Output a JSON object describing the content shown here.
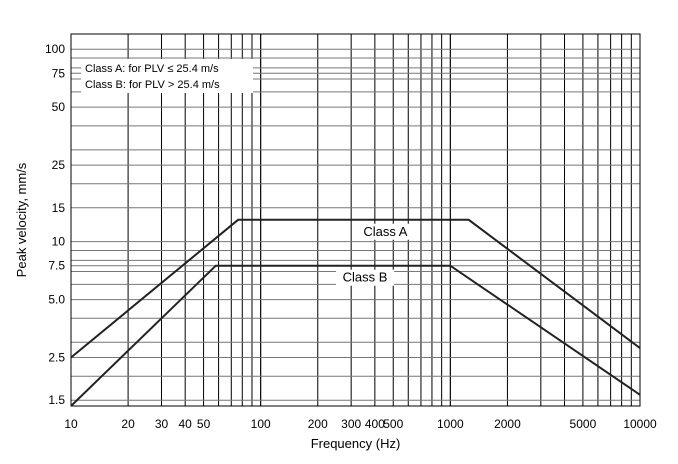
{
  "chart_data": {
    "type": "line",
    "xlabel": "Frequency (Hz)",
    "ylabel": "Peak  velocity, mm/s",
    "xscale": "log",
    "yscale": "log",
    "xlim": [
      10,
      10000
    ],
    "ylim": [
      1.4,
      120
    ],
    "grid": true,
    "x_ticks": [
      10,
      20,
      30,
      40,
      50,
      100,
      200,
      300,
      400,
      500,
      1000,
      2000,
      5000,
      10000
    ],
    "x_tick_labels": [
      "10",
      "20",
      "30",
      "40",
      "50",
      "100",
      "200",
      "300",
      "400",
      "500",
      "1000",
      "2000",
      "5000",
      "10000"
    ],
    "y_ticks": [
      1.5,
      2.5,
      5.0,
      7.5,
      10,
      15,
      25,
      50,
      75,
      100
    ],
    "y_tick_labels": [
      "1.5",
      "2.5",
      "5.0",
      "7.5",
      "10",
      "15",
      "25",
      "50",
      "75",
      "100"
    ],
    "legend": {
      "placement": "top-left",
      "lines": [
        "Class A:  for PLV ≤ 25.4 m/s",
        "Class B:  for PLV > 25.4 m/s"
      ]
    },
    "series": [
      {
        "name": "Class A",
        "points": [
          [
            10,
            2.5
          ],
          [
            76,
            13
          ],
          [
            1250,
            13
          ],
          [
            10000,
            2.8
          ]
        ]
      },
      {
        "name": "Class B",
        "points": [
          [
            10,
            1.4
          ],
          [
            58,
            7.5
          ],
          [
            1000,
            7.5
          ],
          [
            10000,
            1.6
          ]
        ]
      }
    ]
  }
}
